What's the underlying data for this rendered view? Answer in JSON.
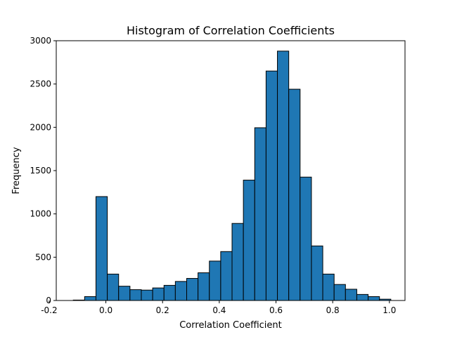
{
  "chart_data": {
    "type": "bar",
    "title": "Histogram of Correlation Coefficients",
    "xlabel": "Correlation Coefficient",
    "ylabel": "Frequency",
    "xlim": [
      -0.175,
      1.055
    ],
    "ylim": [
      0,
      3000
    ],
    "xticks": [
      "-0.2",
      "0.0",
      "0.2",
      "0.4",
      "0.6",
      "0.8",
      "1.0"
    ],
    "yticks": [
      "0",
      "500",
      "1000",
      "1500",
      "2000",
      "2500",
      "3000"
    ],
    "grid": false,
    "bar_color": "#1f77b4",
    "edge_color": "#000000",
    "bins": [
      {
        "x0": -0.155,
        "x1": -0.115,
        "count": 0
      },
      {
        "x0": -0.115,
        "x1": -0.075,
        "count": 5
      },
      {
        "x0": -0.075,
        "x1": -0.035,
        "count": 45
      },
      {
        "x0": -0.035,
        "x1": 0.005,
        "count": 1200
      },
      {
        "x0": 0.005,
        "x1": 0.045,
        "count": 305
      },
      {
        "x0": 0.045,
        "x1": 0.085,
        "count": 165
      },
      {
        "x0": 0.085,
        "x1": 0.125,
        "count": 125
      },
      {
        "x0": 0.125,
        "x1": 0.165,
        "count": 120
      },
      {
        "x0": 0.165,
        "x1": 0.205,
        "count": 145
      },
      {
        "x0": 0.205,
        "x1": 0.245,
        "count": 175
      },
      {
        "x0": 0.245,
        "x1": 0.285,
        "count": 220
      },
      {
        "x0": 0.285,
        "x1": 0.325,
        "count": 255
      },
      {
        "x0": 0.325,
        "x1": 0.365,
        "count": 320
      },
      {
        "x0": 0.365,
        "x1": 0.405,
        "count": 455
      },
      {
        "x0": 0.405,
        "x1": 0.445,
        "count": 565
      },
      {
        "x0": 0.445,
        "x1": 0.485,
        "count": 890
      },
      {
        "x0": 0.485,
        "x1": 0.525,
        "count": 1390
      },
      {
        "x0": 0.525,
        "x1": 0.565,
        "count": 1995
      },
      {
        "x0": 0.565,
        "x1": 0.605,
        "count": 2650
      },
      {
        "x0": 0.605,
        "x1": 0.645,
        "count": 2880
      },
      {
        "x0": 0.645,
        "x1": 0.685,
        "count": 2440
      },
      {
        "x0": 0.685,
        "x1": 0.725,
        "count": 1425
      },
      {
        "x0": 0.725,
        "x1": 0.765,
        "count": 630
      },
      {
        "x0": 0.765,
        "x1": 0.805,
        "count": 305
      },
      {
        "x0": 0.805,
        "x1": 0.845,
        "count": 185
      },
      {
        "x0": 0.845,
        "x1": 0.885,
        "count": 130
      },
      {
        "x0": 0.885,
        "x1": 0.925,
        "count": 70
      },
      {
        "x0": 0.925,
        "x1": 0.965,
        "count": 45
      },
      {
        "x0": 0.965,
        "x1": 1.005,
        "count": 15
      },
      {
        "x0": 1.005,
        "x1": 1.045,
        "count": 0
      }
    ]
  }
}
